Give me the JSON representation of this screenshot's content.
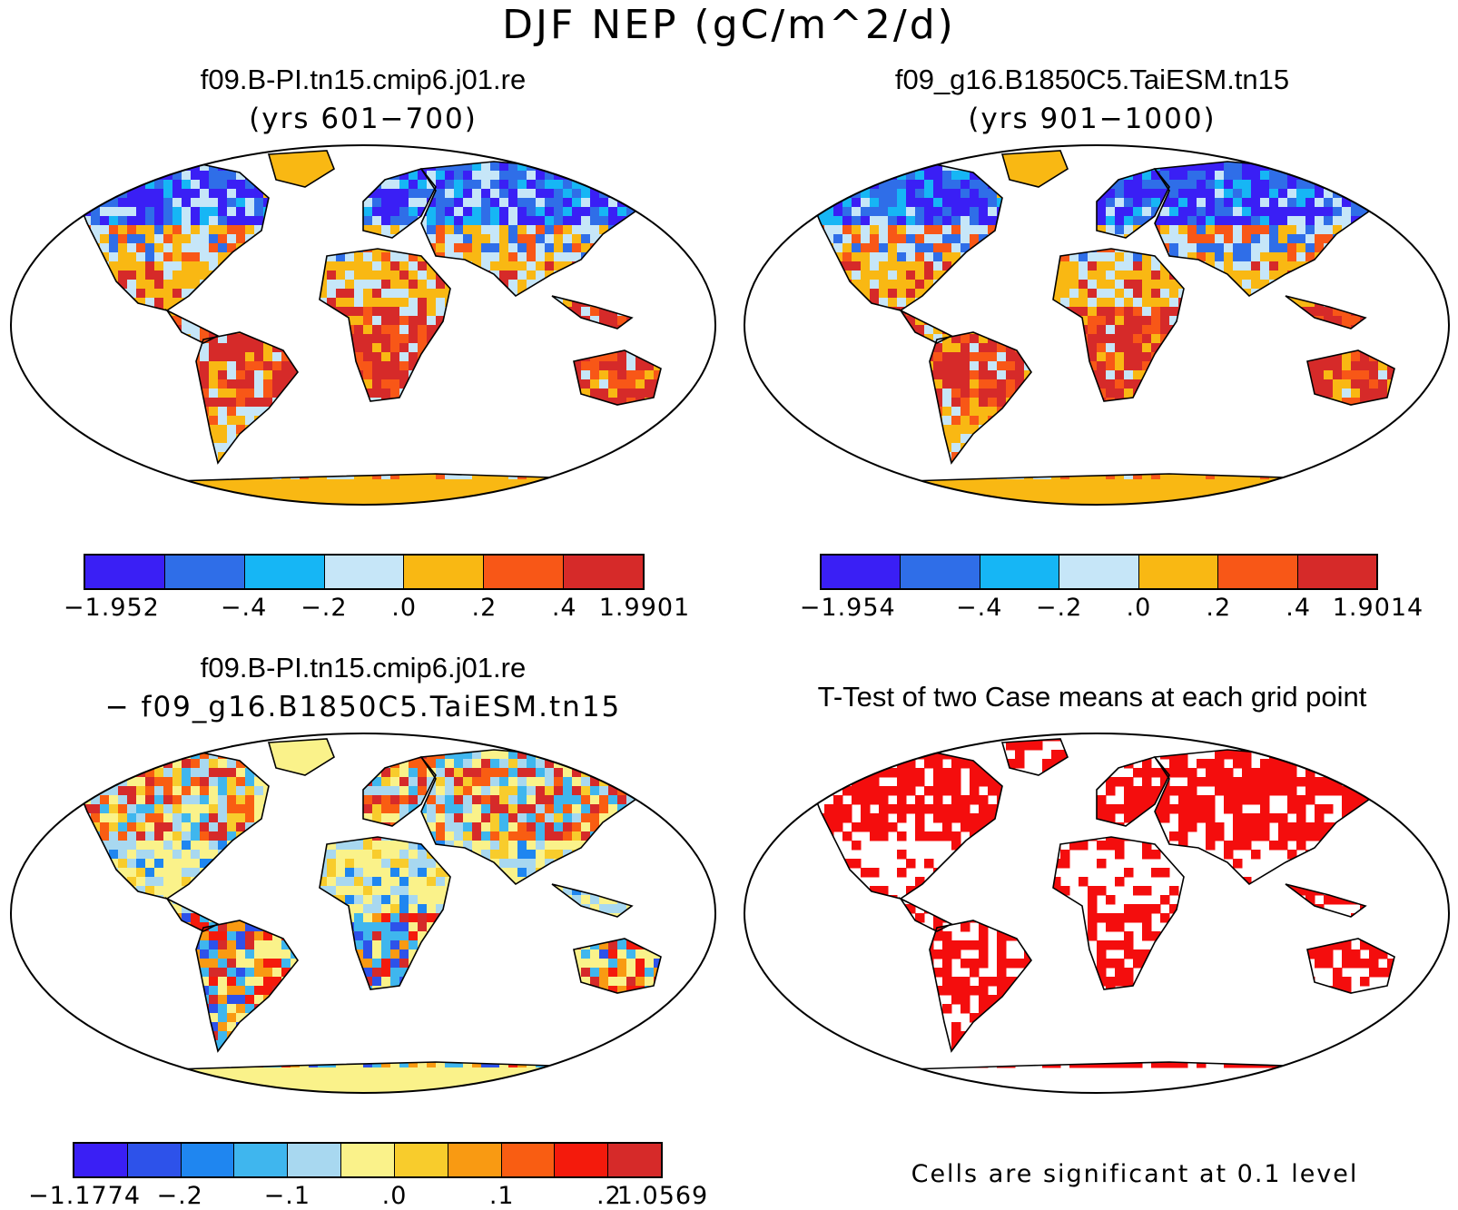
{
  "figure": {
    "title": "DJF NEP (gC/m^2/d)"
  },
  "panels": [
    {
      "id": "case1",
      "title": "f09.B-PI.tn15.cmip6.j01.re",
      "subtitle": "(yrs 601−700)",
      "colorbar": {
        "colors": [
          "#3a1ff5",
          "#2f6ee8",
          "#16b6f5",
          "#c6e6f8",
          "#f9b813",
          "#f85717",
          "#d62a29"
        ],
        "labels": [
          "−1.952",
          "−.4",
          "−.2",
          ".0",
          ".2",
          ".4",
          "1.9901"
        ]
      }
    },
    {
      "id": "case2",
      "title": "f09_g16.B1850C5.TaiESM.tn15",
      "subtitle": "(yrs 901−1000)",
      "colorbar": {
        "colors": [
          "#3a1ff5",
          "#2f6ee8",
          "#16b6f5",
          "#c6e6f8",
          "#f9b813",
          "#f85717",
          "#d62a29"
        ],
        "labels": [
          "−1.954",
          "−.4",
          "−.2",
          ".0",
          ".2",
          ".4",
          "1.9014"
        ]
      }
    },
    {
      "id": "diff",
      "title": "f09.B-PI.tn15.cmip6.j01.re",
      "subtitle": "− f09_g16.B1850C5.TaiESM.tn15",
      "colorbar": {
        "colors": [
          "#3a1ff5",
          "#2d52ea",
          "#1f86f0",
          "#3fb6ee",
          "#a8d8f0",
          "#faf28a",
          "#f8cc2c",
          "#f99a12",
          "#f95d12",
          "#f41a0c",
          "#d62a29"
        ],
        "labels": [
          "−1.1774",
          "−.2",
          "−.1",
          ".0",
          ".1",
          ".2",
          "1.0569"
        ]
      }
    },
    {
      "id": "ttest",
      "title": "T-Test of two Case means at each grid point",
      "note": "Cells are significant at 0.1 level"
    }
  ],
  "map_colors": {
    "ocean": "#ffffff",
    "coast": "#000000",
    "signif": "#f40d0d"
  }
}
